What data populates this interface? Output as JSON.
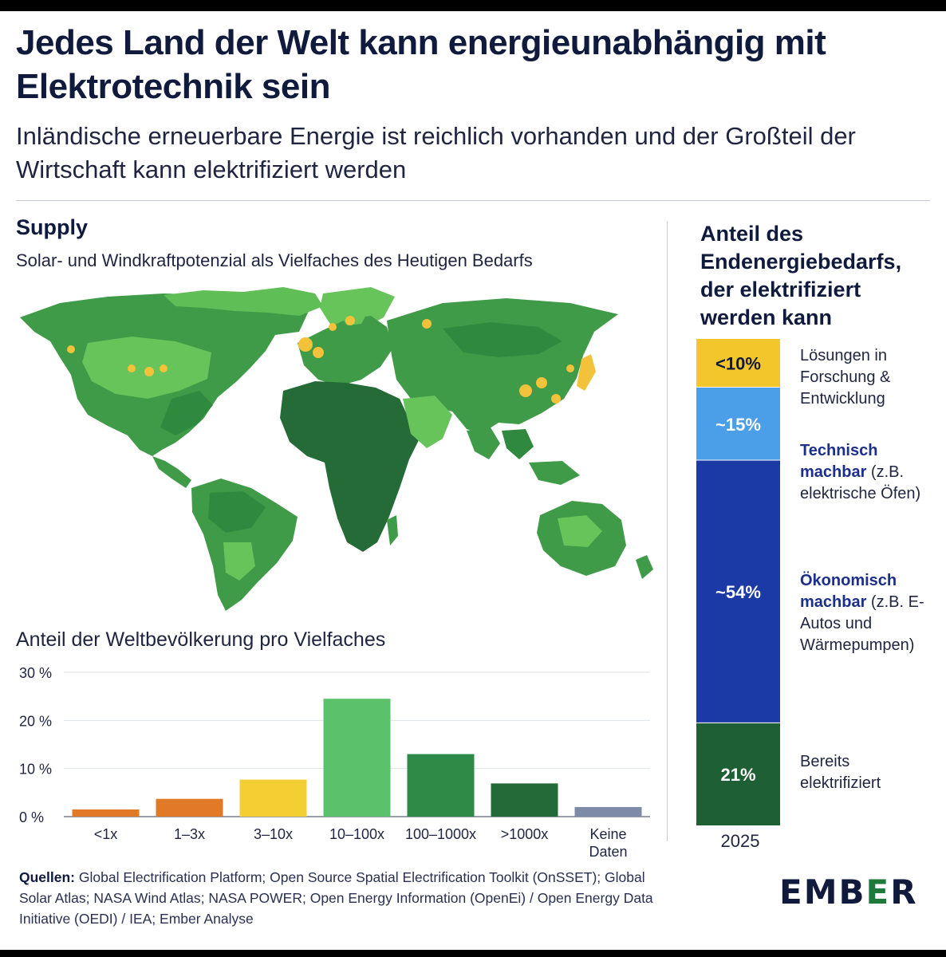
{
  "title": "Jedes Land der Welt kann energieunabhängig mit Elektrotechnik sein",
  "subtitle": "Inländische erneuerbare Energie ist reichlich vorhanden und der Großteil der Wirtschaft kann elektrifiziert werden",
  "supply": {
    "title": "Supply",
    "subtitle": "Solar- und Windkraftpotenzial als Vielfaches des Heutigen Bedarfs"
  },
  "population_chart_title": "Anteil der Weltbevölkerung pro Vielfaches",
  "right_panel": {
    "title": "Anteil des Endenergiebedarfs, der elektrifiziert werden kann",
    "year": "2025",
    "segments": [
      {
        "label": "<10%",
        "text_lines": [
          "Lösungen in",
          "Forschung &",
          "Entwicklung"
        ],
        "color": "#f3c62b"
      },
      {
        "label": "~15%",
        "bold": "Technisch machbar",
        "rest": " (z.B. elektrische Öfen)",
        "color": "#4a9fe8"
      },
      {
        "label": "~54%",
        "bold": "Ökonomisch machbar",
        "rest": " (z.B. E-Autos und Wärmepumpen)",
        "color": "#1c3aa6"
      },
      {
        "label": "21%",
        "text_lines": [
          "Bereits",
          "elektrifiziert"
        ],
        "color": "#1f5f35"
      }
    ]
  },
  "chart_data": [
    {
      "type": "bar",
      "title": "Anteil der Weltbevölkerung pro Vielfaches",
      "categories": [
        "<1x",
        "1–3x",
        "3–10x",
        "10–100x",
        "100–1000x",
        ">1000x",
        "Keine Daten"
      ],
      "values": [
        1.5,
        3.7,
        7.7,
        24.5,
        13,
        6.9,
        2
      ],
      "colors": [
        "#e07a27",
        "#e07a27",
        "#f3cf34",
        "#5cc16b",
        "#2e8a47",
        "#226b38",
        "#7d8aa8"
      ],
      "yticks": [
        "0 %",
        "10 %",
        "20 %",
        "30 %"
      ],
      "ylim": [
        0,
        30
      ],
      "xlabel": "",
      "ylabel": ""
    },
    {
      "type": "bar",
      "title": "Anteil des Endenergiebedarfs, der elektrifiziert werden kann",
      "categories": [
        "2025"
      ],
      "series": [
        {
          "name": "Bereits elektrifiziert",
          "values": [
            21
          ]
        },
        {
          "name": "Ökonomisch machbar",
          "values": [
            54
          ]
        },
        {
          "name": "Technisch machbar",
          "values": [
            15
          ]
        },
        {
          "name": "Lösungen in Forschung & Entwicklung",
          "values": [
            10
          ]
        }
      ],
      "stacked": true
    }
  ],
  "sources": {
    "label": "Quellen:",
    "text": "Global Electrification Platform; Open Source Spatial Electrification Toolkit (OnSSET); Global Solar Atlas; NASA Wind Atlas; NASA POWER; Open Energy Information (OpenEi) / Open Energy Data Initiative (OEDI) / IEA; Ember Analyse"
  },
  "logo": {
    "part1": "EMB",
    "part2": "E",
    "part3": "R"
  },
  "colors": {
    "navy": "#101a3d",
    "green_dark": "#1f5f35",
    "green_mid": "#3f9b48",
    "green_light": "#66c45a",
    "yellow": "#f2c23a"
  }
}
